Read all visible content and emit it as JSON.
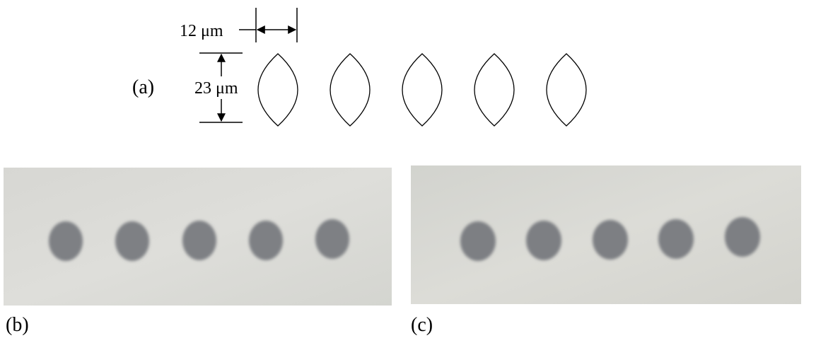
{
  "panel_a": {
    "label": "(a)",
    "width_dimension": "12 μm",
    "height_dimension": "23 μm",
    "ellipse_count": 5
  },
  "panel_b": {
    "label": "(b)",
    "dot_count": 5,
    "background_color": "#dcdcd8",
    "dot_color": "#7e8084"
  },
  "panel_c": {
    "label": "(c)",
    "dot_count": 5,
    "background_color": "#d9d9d4",
    "dot_color": "#7d7f83"
  }
}
